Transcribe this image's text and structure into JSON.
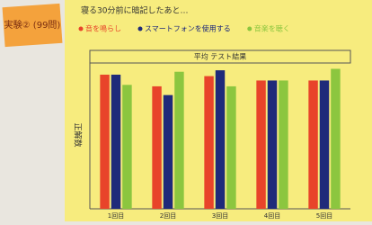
{
  "chart_data": {
    "type": "bar",
    "badge": "実験② (99問)",
    "title": "寝る30分前に暗記したあと…",
    "box_label": "平均 テスト結果",
    "ylabel": "正解数",
    "categories": [
      "1回目",
      "2回目",
      "3回目",
      "4回目",
      "5回目"
    ],
    "series": [
      {
        "name": "音を鳴らし",
        "color": "#e8442a",
        "values": [
          92,
          84,
          91,
          88,
          88
        ]
      },
      {
        "name": "スマートフォンを使用する",
        "color": "#1f2a7a",
        "values": [
          92,
          78,
          95,
          88,
          88
        ]
      },
      {
        "name": "音楽を聴く",
        "color": "#8cc63f",
        "values": [
          85,
          94,
          84,
          88,
          96
        ]
      }
    ],
    "ylim": [
      0,
      100
    ]
  }
}
